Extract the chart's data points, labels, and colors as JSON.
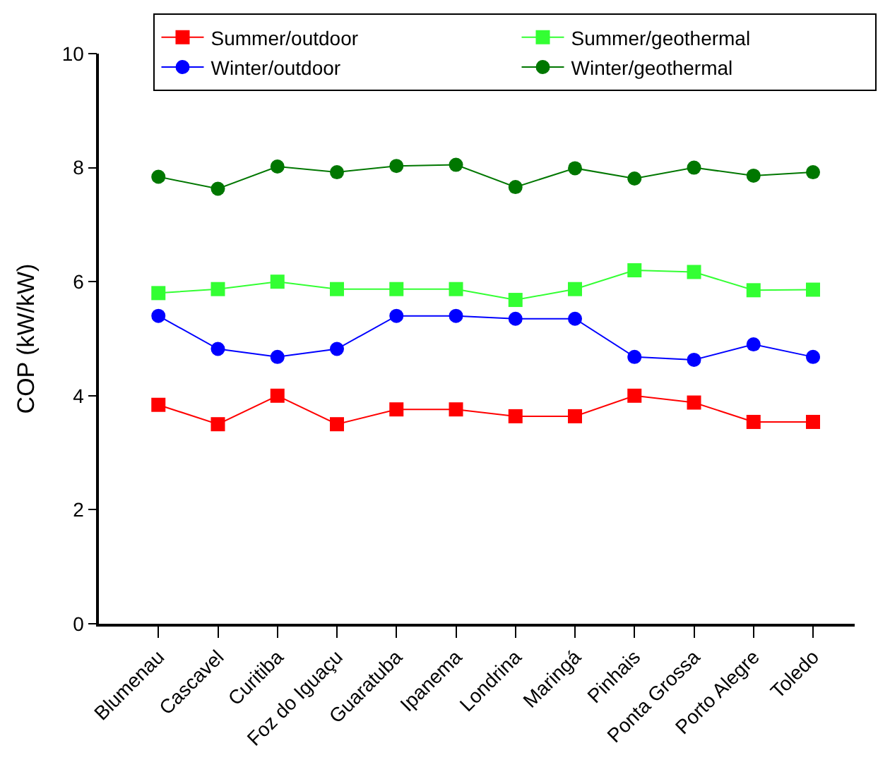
{
  "chart_data": {
    "type": "line",
    "ylabel": "COP (kW/kW)",
    "categories": [
      "Blumenau",
      "Cascavel",
      "Curitiba",
      "Foz do Iguaçu",
      "Guaratuba",
      "Ipanema",
      "Londrina",
      "Maringá",
      "Pinhais",
      "Ponta Grossa",
      "Porto Alegre",
      "Toledo"
    ],
    "series": [
      {
        "name": "Summer/outdoor",
        "color": "#ff0000",
        "marker": "square",
        "values": [
          3.84,
          3.5,
          4.0,
          3.5,
          3.76,
          3.76,
          3.64,
          3.64,
          4.0,
          3.88,
          3.54,
          3.54
        ]
      },
      {
        "name": "Summer/geothermal",
        "color": "#33ff33",
        "marker": "square",
        "values": [
          5.8,
          5.87,
          6.0,
          5.87,
          5.87,
          5.87,
          5.68,
          5.87,
          6.2,
          6.17,
          5.85,
          5.86
        ]
      },
      {
        "name": "Winter/outdoor",
        "color": "#0000ff",
        "marker": "circle",
        "values": [
          5.4,
          4.82,
          4.68,
          4.82,
          5.4,
          5.4,
          5.35,
          5.35,
          4.68,
          4.63,
          4.9,
          4.68
        ]
      },
      {
        "name": "Winter/geothermal",
        "color": "#007700",
        "marker": "circle",
        "values": [
          7.84,
          7.63,
          8.02,
          7.92,
          8.03,
          8.05,
          7.66,
          7.99,
          7.81,
          8.0,
          7.86,
          7.92
        ]
      }
    ],
    "ylim": [
      0,
      10
    ],
    "yticks": [
      0,
      2,
      4,
      6,
      8,
      10
    ],
    "legend": "top"
  }
}
